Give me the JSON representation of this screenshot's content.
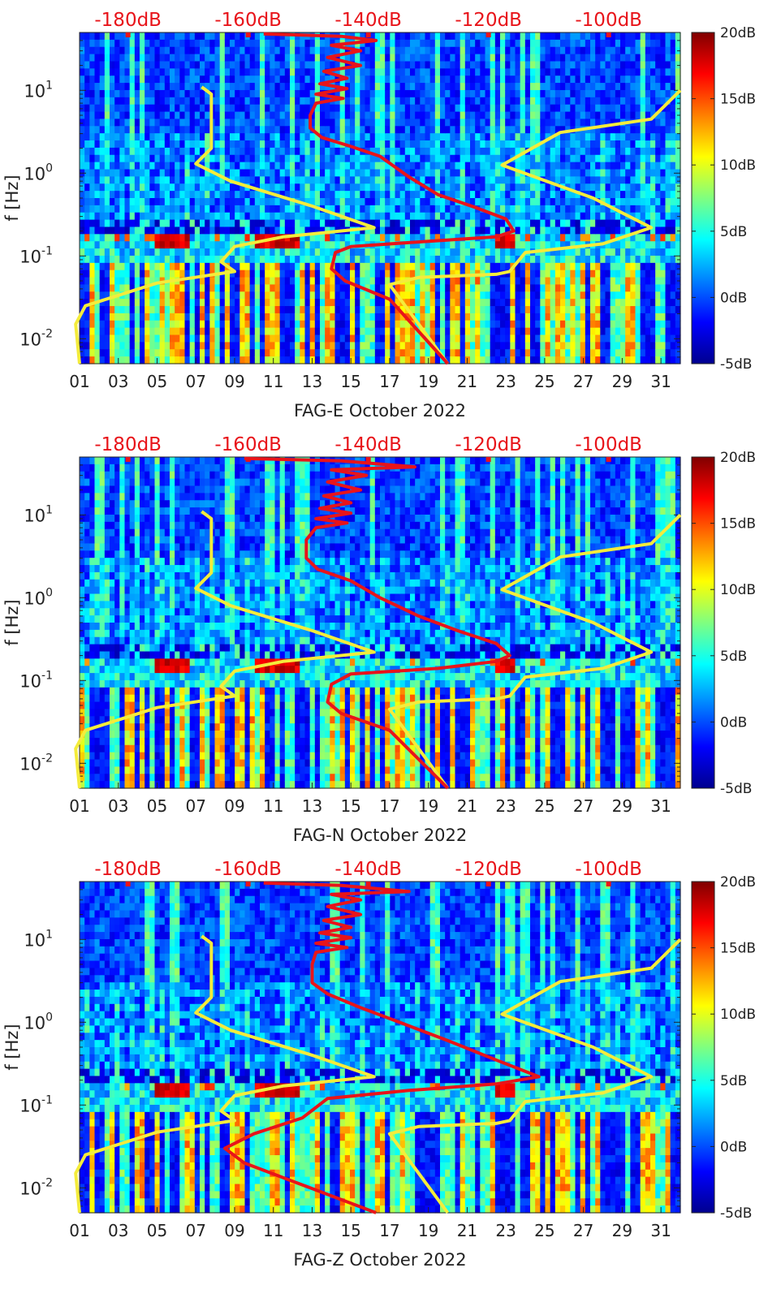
{
  "chart_data": [
    {
      "type": "heatmap",
      "title": "",
      "xlabel": "FAG-E October 2022",
      "ylabel": "f [Hz]",
      "y_scale": "log",
      "ylim": [
        0.005,
        50
      ],
      "x_tick_labels": [
        "01",
        "03",
        "05",
        "07",
        "09",
        "11",
        "13",
        "15",
        "17",
        "19",
        "21",
        "23",
        "25",
        "27",
        "29",
        "31"
      ],
      "x_ticks_days": [
        1,
        3,
        5,
        7,
        9,
        11,
        13,
        15,
        17,
        19,
        21,
        23,
        25,
        27,
        29,
        31
      ],
      "y_ticks": [
        0.01,
        0.1,
        1,
        10
      ],
      "y_tick_labels": [
        {
          "base": "10",
          "exp": "-2"
        },
        {
          "base": "10",
          "exp": "-1"
        },
        {
          "base": "10",
          "exp": "0"
        },
        {
          "base": "10",
          "exp": "1"
        }
      ],
      "top_axis_labels": [
        "-180dB",
        "-160dB",
        "-140dB",
        "-120dB",
        "-100dB"
      ],
      "top_axis_color": "#e8141a",
      "colorbar": {
        "labels": [
          "20dB",
          "15dB",
          "10dB",
          "5dB",
          "0dB",
          "-5dB"
        ],
        "range": [
          -5,
          20
        ]
      },
      "series": [
        {
          "color": "#f4ec3b",
          "points": [
            [
              1.0,
              0.005
            ],
            [
              0.8,
              0.015
            ],
            [
              1.3,
              0.025
            ],
            [
              5.0,
              0.047
            ],
            [
              9.0,
              0.065
            ],
            [
              8.3,
              0.085
            ],
            [
              9.0,
              0.13
            ],
            [
              11.5,
              0.17
            ],
            [
              16.2,
              0.22
            ],
            [
              13.0,
              0.4
            ],
            [
              8.8,
              0.8
            ],
            [
              7.0,
              1.3
            ],
            [
              7.8,
              2.0
            ],
            [
              7.8,
              9.0
            ],
            [
              7.3,
              11.0
            ]
          ]
        },
        {
          "color": "#f4ec3b",
          "points": [
            [
              20.0,
              0.005
            ],
            [
              17.0,
              0.045
            ],
            [
              18.5,
              0.055
            ],
            [
              22.5,
              0.06
            ],
            [
              23.2,
              0.065
            ],
            [
              24.0,
              0.11
            ],
            [
              28.0,
              0.14
            ],
            [
              30.5,
              0.22
            ],
            [
              27.5,
              0.5
            ],
            [
              22.8,
              1.25
            ],
            [
              25.8,
              3.1
            ],
            [
              30.5,
              4.5
            ],
            [
              32.0,
              10.0
            ]
          ]
        },
        {
          "color": "#e8141a",
          "points": [
            [
              20.0,
              0.005
            ],
            [
              17.0,
              0.03
            ],
            [
              14.7,
              0.05
            ],
            [
              14.0,
              0.07
            ],
            [
              14.2,
              0.11
            ],
            [
              15.0,
              0.13
            ],
            [
              19.0,
              0.15
            ],
            [
              22.5,
              0.17
            ],
            [
              23.4,
              0.2
            ],
            [
              23.0,
              0.28
            ],
            [
              21.5,
              0.38
            ],
            [
              19.5,
              0.55
            ],
            [
              18.0,
              0.9
            ],
            [
              16.5,
              1.6
            ],
            [
              15.0,
              2.1
            ],
            [
              13.5,
              2.7
            ],
            [
              12.9,
              3.5
            ],
            [
              12.9,
              5.0
            ],
            [
              13.2,
              7.0
            ],
            [
              14.6,
              8.0
            ],
            [
              13.2,
              9.0
            ],
            [
              14.8,
              10.5
            ],
            [
              13.4,
              12.0
            ],
            [
              14.8,
              14.0
            ],
            [
              13.6,
              17.0
            ],
            [
              15.5,
              20.0
            ],
            [
              13.8,
              25.0
            ],
            [
              15.5,
              30.0
            ],
            [
              14.0,
              35.0
            ],
            [
              16.3,
              40.0
            ],
            [
              14.5,
              45.0
            ],
            [
              10.5,
              48.0
            ]
          ]
        }
      ]
    },
    {
      "type": "heatmap",
      "title": "",
      "xlabel": "FAG-N October 2022",
      "ylabel": "f [Hz]",
      "y_scale": "log",
      "ylim": [
        0.005,
        50
      ],
      "x_tick_labels": [
        "01",
        "03",
        "05",
        "07",
        "09",
        "11",
        "13",
        "15",
        "17",
        "19",
        "21",
        "23",
        "25",
        "27",
        "29",
        "31"
      ],
      "x_ticks_days": [
        1,
        3,
        5,
        7,
        9,
        11,
        13,
        15,
        17,
        19,
        21,
        23,
        25,
        27,
        29,
        31
      ],
      "y_ticks": [
        0.01,
        0.1,
        1,
        10
      ],
      "y_tick_labels": [
        {
          "base": "10",
          "exp": "-2"
        },
        {
          "base": "10",
          "exp": "-1"
        },
        {
          "base": "10",
          "exp": "0"
        },
        {
          "base": "10",
          "exp": "1"
        }
      ],
      "top_axis_labels": [
        "-180dB",
        "-160dB",
        "-140dB",
        "-120dB",
        "-100dB"
      ],
      "top_axis_color": "#e8141a",
      "colorbar": {
        "labels": [
          "20dB",
          "15dB",
          "10dB",
          "5dB",
          "0dB",
          "-5dB"
        ],
        "range": [
          -5,
          20
        ]
      },
      "series": [
        {
          "color": "#f4ec3b",
          "points": [
            [
              1.0,
              0.005
            ],
            [
              0.8,
              0.015
            ],
            [
              1.3,
              0.025
            ],
            [
              5.0,
              0.047
            ],
            [
              9.0,
              0.065
            ],
            [
              8.3,
              0.085
            ],
            [
              9.0,
              0.13
            ],
            [
              11.5,
              0.17
            ],
            [
              16.2,
              0.22
            ],
            [
              13.0,
              0.4
            ],
            [
              8.8,
              0.8
            ],
            [
              7.0,
              1.3
            ],
            [
              7.8,
              2.0
            ],
            [
              7.8,
              9.0
            ],
            [
              7.3,
              11.0
            ]
          ]
        },
        {
          "color": "#f4ec3b",
          "points": [
            [
              20.0,
              0.005
            ],
            [
              17.0,
              0.045
            ],
            [
              18.5,
              0.055
            ],
            [
              22.5,
              0.06
            ],
            [
              23.2,
              0.065
            ],
            [
              24.0,
              0.11
            ],
            [
              28.0,
              0.14
            ],
            [
              30.5,
              0.22
            ],
            [
              27.5,
              0.5
            ],
            [
              22.8,
              1.25
            ],
            [
              25.8,
              3.1
            ],
            [
              30.5,
              4.5
            ],
            [
              32.0,
              10.0
            ]
          ]
        },
        {
          "color": "#e8141a",
          "points": [
            [
              20.0,
              0.005
            ],
            [
              17.0,
              0.025
            ],
            [
              14.5,
              0.04
            ],
            [
              13.8,
              0.055
            ],
            [
              14.0,
              0.09
            ],
            [
              15.0,
              0.12
            ],
            [
              19.5,
              0.14
            ],
            [
              22.5,
              0.17
            ],
            [
              23.2,
              0.2
            ],
            [
              22.5,
              0.28
            ],
            [
              20.5,
              0.4
            ],
            [
              18.5,
              0.6
            ],
            [
              16.5,
              1.0
            ],
            [
              15.0,
              1.6
            ],
            [
              13.3,
              2.2
            ],
            [
              12.7,
              3.0
            ],
            [
              12.7,
              5.0
            ],
            [
              13.2,
              7.0
            ],
            [
              14.8,
              8.0
            ],
            [
              13.2,
              9.0
            ],
            [
              15.0,
              10.5
            ],
            [
              13.4,
              12.0
            ],
            [
              15.0,
              14.0
            ],
            [
              13.6,
              17.0
            ],
            [
              15.5,
              20.0
            ],
            [
              13.8,
              25.0
            ],
            [
              15.8,
              30.0
            ],
            [
              14.0,
              35.0
            ],
            [
              18.3,
              38.0
            ],
            [
              14.5,
              45.0
            ],
            [
              9.5,
              48.0
            ]
          ]
        }
      ]
    },
    {
      "type": "heatmap",
      "title": "",
      "xlabel": "FAG-Z October 2022",
      "ylabel": "f [Hz]",
      "y_scale": "log",
      "ylim": [
        0.005,
        50
      ],
      "x_tick_labels": [
        "01",
        "03",
        "05",
        "07",
        "09",
        "11",
        "13",
        "15",
        "17",
        "19",
        "21",
        "23",
        "25",
        "27",
        "29",
        "31"
      ],
      "x_ticks_days": [
        1,
        3,
        5,
        7,
        9,
        11,
        13,
        15,
        17,
        19,
        21,
        23,
        25,
        27,
        29,
        31
      ],
      "y_ticks": [
        0.01,
        0.1,
        1,
        10
      ],
      "y_tick_labels": [
        {
          "base": "10",
          "exp": "-2"
        },
        {
          "base": "10",
          "exp": "-1"
        },
        {
          "base": "10",
          "exp": "0"
        },
        {
          "base": "10",
          "exp": "1"
        }
      ],
      "top_axis_labels": [
        "-180dB",
        "-160dB",
        "-140dB",
        "-120dB",
        "-100dB"
      ],
      "top_axis_color": "#e8141a",
      "colorbar": {
        "labels": [
          "20dB",
          "15dB",
          "10dB",
          "5dB",
          "0dB",
          "-5dB"
        ],
        "range": [
          -5,
          20
        ]
      },
      "series": [
        {
          "color": "#f4ec3b",
          "points": [
            [
              1.0,
              0.005
            ],
            [
              0.8,
              0.015
            ],
            [
              1.3,
              0.025
            ],
            [
              5.0,
              0.047
            ],
            [
              9.0,
              0.065
            ],
            [
              8.3,
              0.085
            ],
            [
              9.0,
              0.13
            ],
            [
              11.5,
              0.17
            ],
            [
              16.2,
              0.22
            ],
            [
              13.0,
              0.4
            ],
            [
              8.8,
              0.8
            ],
            [
              7.0,
              1.3
            ],
            [
              7.8,
              2.0
            ],
            [
              7.8,
              9.0
            ],
            [
              7.3,
              11.0
            ]
          ]
        },
        {
          "color": "#f4ec3b",
          "points": [
            [
              20.0,
              0.005
            ],
            [
              17.0,
              0.045
            ],
            [
              18.5,
              0.055
            ],
            [
              22.5,
              0.06
            ],
            [
              23.2,
              0.065
            ],
            [
              24.0,
              0.11
            ],
            [
              28.0,
              0.14
            ],
            [
              30.5,
              0.22
            ],
            [
              27.5,
              0.5
            ],
            [
              22.8,
              1.25
            ],
            [
              25.8,
              3.1
            ],
            [
              30.5,
              4.5
            ],
            [
              32.0,
              10.0
            ]
          ]
        },
        {
          "color": "#e8141a",
          "points": [
            [
              16.3,
              0.005
            ],
            [
              12.0,
              0.012
            ],
            [
              9.5,
              0.02
            ],
            [
              8.5,
              0.03
            ],
            [
              10.0,
              0.045
            ],
            [
              12.5,
              0.07
            ],
            [
              13.8,
              0.12
            ],
            [
              18.0,
              0.15
            ],
            [
              22.5,
              0.18
            ],
            [
              24.7,
              0.22
            ],
            [
              22.5,
              0.35
            ],
            [
              20.0,
              0.6
            ],
            [
              17.5,
              1.0
            ],
            [
              15.5,
              1.5
            ],
            [
              13.8,
              2.2
            ],
            [
              13.0,
              3.0
            ],
            [
              13.0,
              5.0
            ],
            [
              13.2,
              7.0
            ],
            [
              14.8,
              8.0
            ],
            [
              13.2,
              9.0
            ],
            [
              15.0,
              10.5
            ],
            [
              13.4,
              12.0
            ],
            [
              15.0,
              14.0
            ],
            [
              13.6,
              17.0
            ],
            [
              15.5,
              20.0
            ],
            [
              13.8,
              25.0
            ],
            [
              15.5,
              30.0
            ],
            [
              14.0,
              35.0
            ],
            [
              18.0,
              38.0
            ],
            [
              14.5,
              45.0
            ],
            [
              10.5,
              48.0
            ]
          ]
        }
      ]
    }
  ]
}
